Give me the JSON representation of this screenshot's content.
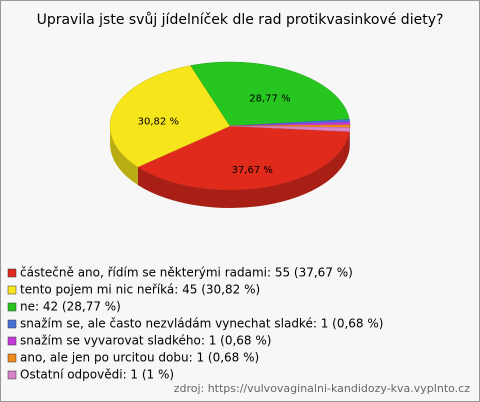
{
  "chart_data": {
    "type": "pie3d",
    "title": "Upravila jste svůj jídelníček dle rad protikvasinkové diety?",
    "categories": [
      "částečně ano, řídím se některými radami",
      "tento pojem mi nic neříká",
      "ne",
      "snažím se, ale často nezvládám vynechat sladké",
      "snažím se vyvarovat sladkého",
      "ano, ale jen po urcitou dobu",
      "Ostatní odpovědi"
    ],
    "values": [
      37.67,
      30.82,
      28.77,
      0.68,
      0.68,
      0.68,
      1
    ],
    "value_labels": [
      "37,67 %",
      "30,82 %",
      "28,77 %",
      null,
      null,
      null,
      null
    ],
    "colors": [
      "#e02a1c",
      "#f7e51b",
      "#27c520",
      "#4a6fd8",
      "#c53ad8",
      "#ef8a1c",
      "#d884cc"
    ],
    "legend_labels": [
      "částečně ano, řídím se některými radami: 55 (37,67 %)",
      "tento pojem mi nic neříká: 45 (30,82 %)",
      "ne: 42 (28,77 %)",
      "snažím se, ale často nezvládám vynechat sladké: 1 (0,68 %)",
      "snažím se vyvarovat sladkého: 1 (0,68 %)",
      "ano, ale jen po urcitou dobu: 1 (0,68 %)",
      "Ostatní odpovědi: 1 (1 %)"
    ],
    "source": "zdroj: https://vulvovaginalni-kandidozy-kva.vyplnto.cz"
  }
}
